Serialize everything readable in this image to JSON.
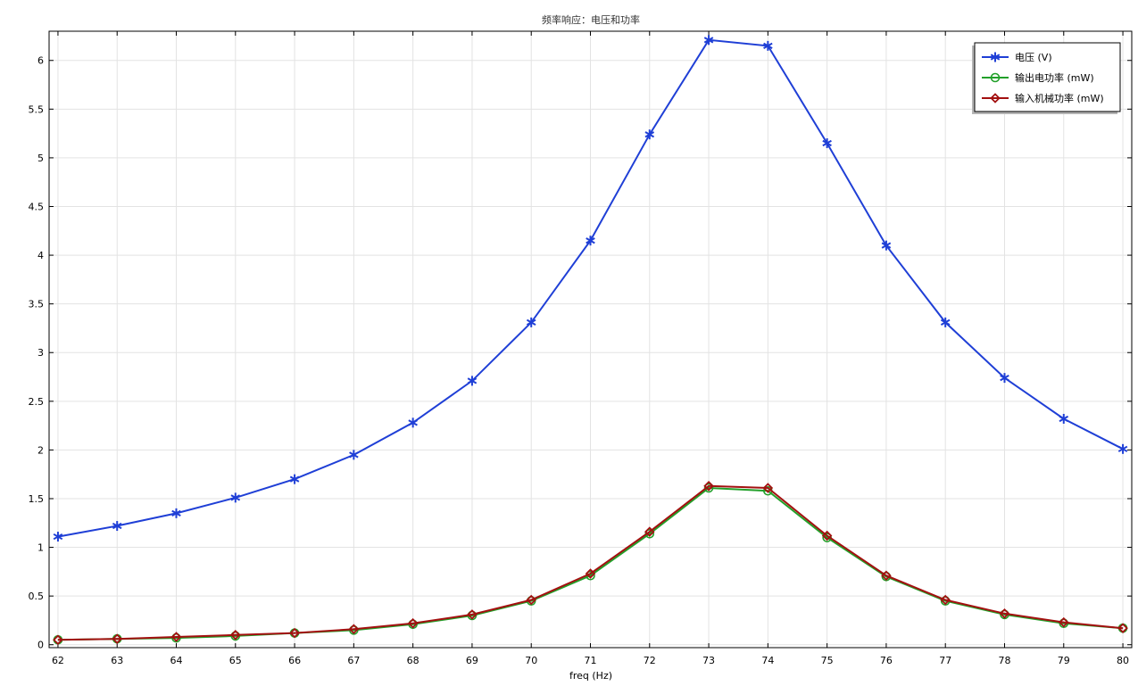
{
  "chart_data": {
    "type": "line",
    "title": "频率响应：电压和功率",
    "xlabel": "freq (Hz)",
    "ylabel": "",
    "xlim": [
      61.85,
      80.15
    ],
    "ylim": [
      -0.03,
      6.3
    ],
    "x_ticks": [
      62,
      63,
      64,
      65,
      66,
      67,
      68,
      69,
      70,
      71,
      72,
      73,
      74,
      75,
      76,
      77,
      78,
      79,
      80
    ],
    "y_ticks": [
      0,
      0.5,
      1,
      1.5,
      2,
      2.5,
      3,
      3.5,
      4,
      4.5,
      5,
      5.5,
      6
    ],
    "grid": true,
    "legend_position": "top-right",
    "x": [
      62,
      63,
      64,
      65,
      66,
      67,
      68,
      69,
      70,
      71,
      72,
      73,
      74,
      75,
      76,
      77,
      78,
      79,
      80
    ],
    "series": [
      {
        "name": "电压 (V)",
        "color": "#1f3fd6",
        "marker": "star",
        "values": [
          1.11,
          1.22,
          1.35,
          1.51,
          1.7,
          1.95,
          2.28,
          2.71,
          3.31,
          4.15,
          5.24,
          6.21,
          6.15,
          5.15,
          4.1,
          3.31,
          2.74,
          2.32,
          2.01
        ]
      },
      {
        "name": "输出电功率 (mW)",
        "color": "#22a02a",
        "marker": "circle",
        "values": [
          0.05,
          0.06,
          0.07,
          0.09,
          0.12,
          0.15,
          0.21,
          0.3,
          0.45,
          0.71,
          1.14,
          1.61,
          1.58,
          1.1,
          0.7,
          0.45,
          0.31,
          0.22,
          0.17
        ]
      },
      {
        "name": "输入机械功率 (mW)",
        "color": "#a31010",
        "marker": "diamond",
        "values": [
          0.05,
          0.06,
          0.08,
          0.1,
          0.12,
          0.16,
          0.22,
          0.31,
          0.46,
          0.73,
          1.16,
          1.63,
          1.61,
          1.12,
          0.71,
          0.46,
          0.32,
          0.23,
          0.17
        ]
      }
    ]
  }
}
